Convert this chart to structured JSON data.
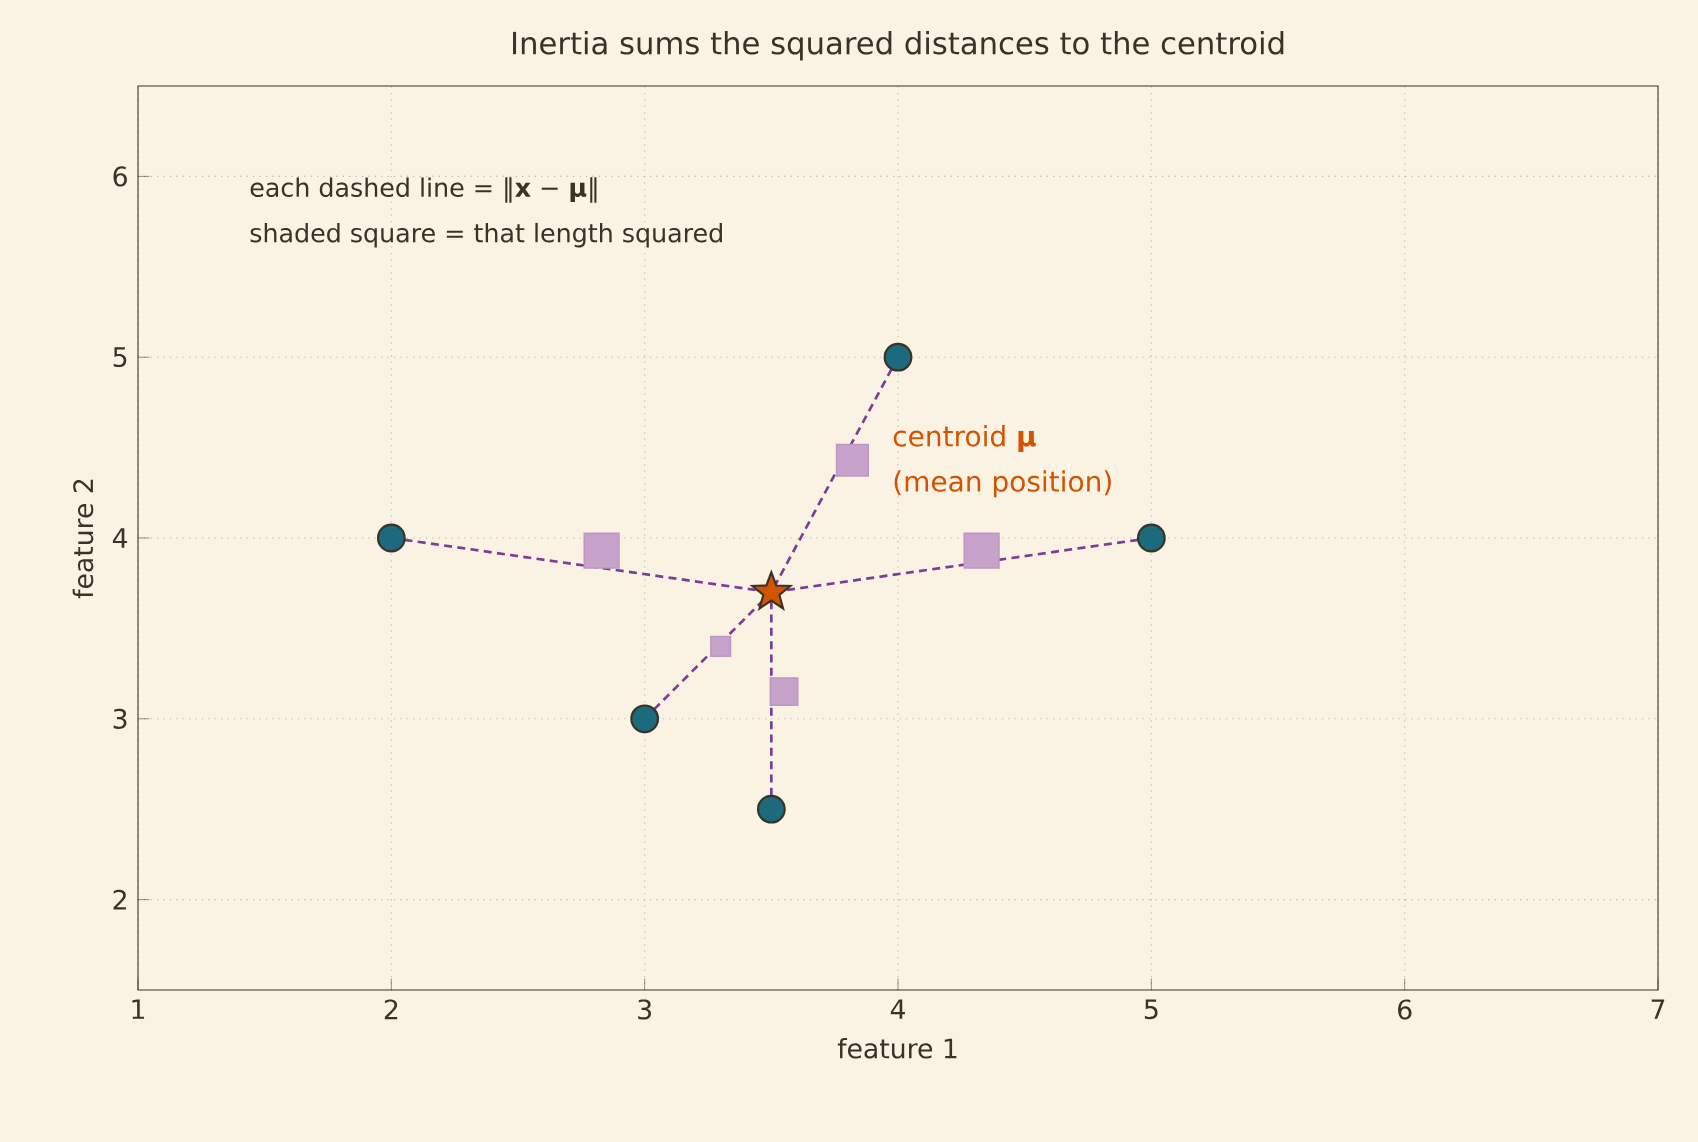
{
  "chart_data": {
    "type": "scatter",
    "title": "Inertia sums the squared distances to the centroid",
    "xlabel": "feature 1",
    "ylabel": "feature 2",
    "xlim": [
      1,
      7
    ],
    "ylim": [
      1.5,
      6.5
    ],
    "xticks": [
      1,
      2,
      3,
      4,
      5,
      6,
      7
    ],
    "yticks": [
      2,
      3,
      4,
      5,
      6
    ],
    "grid": true,
    "series": [
      {
        "type": "line",
        "line_style": "dashed",
        "marker": "none",
        "color": "#7d3c98",
        "x": [
          2,
          3.5
        ],
        "values": [
          4,
          3.7
        ]
      },
      {
        "type": "line",
        "line_style": "dashed",
        "marker": "none",
        "color": "#7d3c98",
        "x": [
          3,
          3.5
        ],
        "values": [
          3,
          3.7
        ]
      },
      {
        "type": "line",
        "line_style": "dashed",
        "marker": "none",
        "color": "#7d3c98",
        "x": [
          4,
          3.5
        ],
        "values": [
          5,
          3.7
        ]
      },
      {
        "type": "line",
        "line_style": "dashed",
        "marker": "none",
        "color": "#7d3c98",
        "x": [
          5,
          3.5
        ],
        "values": [
          4,
          3.7
        ]
      },
      {
        "type": "line",
        "line_style": "dashed",
        "marker": "none",
        "color": "#7d3c98",
        "x": [
          3.5,
          3.5
        ],
        "values": [
          2.5,
          3.7
        ]
      },
      {
        "type": "bubble",
        "marker": "square",
        "color": "#c7a3cc",
        "x": [
          2.83,
          3.3,
          3.82,
          4.33,
          3.55
        ],
        "values": [
          3.93,
          3.4,
          4.43,
          3.93,
          3.15
        ],
        "sizes": [
          1,
          0.32,
          0.83,
          1,
          0.62
        ]
      },
      {
        "marker": "circle",
        "color": "#1b6b7d",
        "x": [
          2,
          3,
          4,
          5,
          3.5
        ],
        "values": [
          4,
          3,
          5,
          4,
          2.5
        ]
      },
      {
        "marker": "star",
        "color": "#d35400",
        "x": [
          3.5
        ],
        "values": [
          3.7
        ]
      }
    ],
    "annotations": [
      "each dashed line = ‖**x** − **μ**‖",
      "shaded square = that length squared",
      "centroid **μ**",
      "(mean position)"
    ]
  }
}
